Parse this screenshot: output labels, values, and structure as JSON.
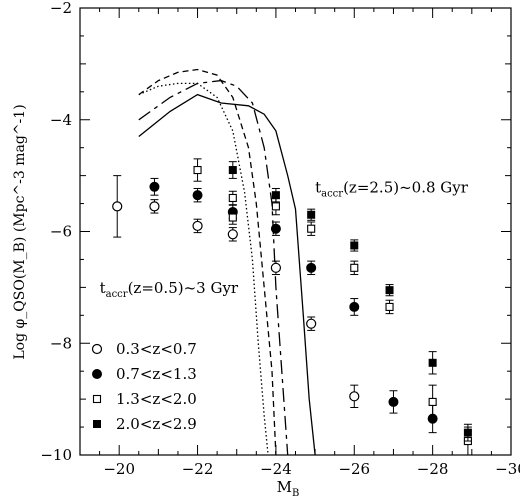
{
  "chart_data": {
    "type": "scatter",
    "xlabel_main": "M",
    "xlabel_sub": "B",
    "ylabel": "Log φ_QSO(M_B) (Mpc^-3 mag^-1)",
    "xlim": [
      -19,
      -30
    ],
    "ylim": [
      -10,
      -2
    ],
    "xticks": [
      {
        "value": -20,
        "label": "−20"
      },
      {
        "value": -22,
        "label": "−22"
      },
      {
        "value": -24,
        "label": "−24"
      },
      {
        "value": -26,
        "label": "−26"
      },
      {
        "value": -28,
        "label": "−28"
      },
      {
        "value": -30,
        "label": "−30"
      }
    ],
    "yticks": [
      {
        "value": -2,
        "label": "−2"
      },
      {
        "value": -4,
        "label": "−4"
      },
      {
        "value": -6,
        "label": "−6"
      },
      {
        "value": -8,
        "label": "−8"
      },
      {
        "value": -10,
        "label": "−10"
      }
    ],
    "annotations": [
      {
        "id": "ann-high-z",
        "text_main": "t",
        "text_sub": "accr",
        "text_rest": "(z=2.5)~0.8 Gyr",
        "x": -25.0,
        "y": -5.3
      },
      {
        "id": "ann-low-z",
        "text_main": "t",
        "text_sub": "accr",
        "text_rest": "(z=0.5)~3 Gyr",
        "x": -19.5,
        "y": -7.1
      }
    ],
    "series": [
      {
        "name": "0.3<z<0.7",
        "marker": "open-circle",
        "points": [
          [
            -19.95,
            -5.55,
            0.55
          ],
          [
            -20.9,
            -5.55,
            0.12
          ],
          [
            -22.0,
            -5.9,
            0.12
          ],
          [
            -22.9,
            -6.05,
            0.12
          ],
          [
            -24.0,
            -6.65,
            0.12
          ],
          [
            -24.9,
            -7.65,
            0.12
          ],
          [
            -26.0,
            -8.95,
            0.2
          ]
        ]
      },
      {
        "name": "0.7<z<1.3",
        "marker": "filled-circle",
        "points": [
          [
            -20.9,
            -5.2,
            0.15
          ],
          [
            -22.0,
            -5.35,
            0.12
          ],
          [
            -22.9,
            -5.65,
            0.12
          ],
          [
            -24.0,
            -5.95,
            0.12
          ],
          [
            -24.9,
            -6.65,
            0.12
          ],
          [
            -26.0,
            -7.35,
            0.15
          ],
          [
            -27.0,
            -9.05,
            0.2
          ],
          [
            -28.0,
            -9.35,
            0.25
          ]
        ]
      },
      {
        "name": "1.3<z<2.0",
        "marker": "open-square",
        "points": [
          [
            -22.0,
            -4.9,
            0.2
          ],
          [
            -22.9,
            -5.4,
            0.12
          ],
          [
            -22.9,
            -5.75,
            0.12
          ],
          [
            -24.0,
            -5.55,
            0.15
          ],
          [
            -24.9,
            -5.95,
            0.12
          ],
          [
            -26.0,
            -6.65,
            0.12
          ],
          [
            -26.9,
            -7.35,
            0.12
          ],
          [
            -28.0,
            -9.05,
            0.3
          ],
          [
            -28.9,
            -9.75,
            0.25
          ]
        ]
      },
      {
        "name": "2.0<z<2.9",
        "marker": "filled-square",
        "points": [
          [
            -22.9,
            -4.9,
            0.15
          ],
          [
            -24.0,
            -5.35,
            0.12
          ],
          [
            -24.9,
            -5.7,
            0.1
          ],
          [
            -26.0,
            -6.25,
            0.1
          ],
          [
            -26.9,
            -7.05,
            0.1
          ],
          [
            -28.0,
            -8.35,
            0.2
          ],
          [
            -28.9,
            -9.6,
            0.15
          ]
        ]
      }
    ],
    "curves": [
      {
        "id": "curve-solid",
        "style": "solid",
        "points": [
          [
            -20.5,
            -4.3
          ],
          [
            -21.3,
            -3.85
          ],
          [
            -22.0,
            -3.55
          ],
          [
            -22.6,
            -3.7
          ],
          [
            -23.3,
            -3.75
          ],
          [
            -23.7,
            -3.9
          ],
          [
            -24.0,
            -4.2
          ],
          [
            -24.3,
            -5.0
          ],
          [
            -24.5,
            -5.6
          ],
          [
            -24.7,
            -7.5
          ],
          [
            -24.85,
            -9.0
          ],
          [
            -25.0,
            -10.0
          ]
        ]
      },
      {
        "id": "curve-long-dash",
        "style": "long-dash",
        "points": [
          [
            -20.5,
            -4.0
          ],
          [
            -21.3,
            -3.6
          ],
          [
            -22.0,
            -3.35
          ],
          [
            -22.6,
            -3.3
          ],
          [
            -23.0,
            -3.4
          ],
          [
            -23.4,
            -3.7
          ],
          [
            -23.7,
            -4.5
          ],
          [
            -23.9,
            -5.5
          ],
          [
            -24.0,
            -7.0
          ],
          [
            -24.15,
            -8.5
          ],
          [
            -24.3,
            -10.0
          ]
        ]
      },
      {
        "id": "curve-short-dash",
        "style": "short-dash",
        "points": [
          [
            -20.5,
            -3.55
          ],
          [
            -21.0,
            -3.3
          ],
          [
            -21.5,
            -3.15
          ],
          [
            -22.0,
            -3.1
          ],
          [
            -22.5,
            -3.2
          ],
          [
            -22.9,
            -3.6
          ],
          [
            -23.3,
            -4.5
          ],
          [
            -23.5,
            -5.5
          ],
          [
            -23.7,
            -7.0
          ],
          [
            -23.9,
            -8.5
          ],
          [
            -24.0,
            -10.0
          ]
        ]
      },
      {
        "id": "curve-dotted",
        "style": "dotted",
        "points": [
          [
            -20.5,
            -3.55
          ],
          [
            -21.0,
            -3.4
          ],
          [
            -21.5,
            -3.35
          ],
          [
            -22.0,
            -3.35
          ],
          [
            -22.5,
            -3.6
          ],
          [
            -22.9,
            -4.2
          ],
          [
            -23.2,
            -5.3
          ],
          [
            -23.4,
            -6.5
          ],
          [
            -23.55,
            -8.0
          ],
          [
            -23.7,
            -9.3
          ],
          [
            -23.8,
            -10.0
          ]
        ]
      }
    ]
  }
}
